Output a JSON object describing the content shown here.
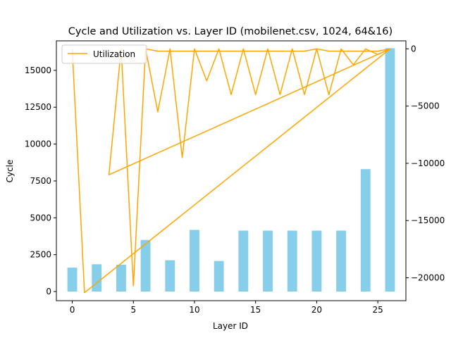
{
  "chart_data": {
    "type": "bar+line",
    "title": "Cycle and Utilization vs. Layer ID (mobilenet.csv, 1024, 64&16)",
    "xlabel": "Layer ID",
    "ylabel": "Cycle",
    "y2label": "",
    "xlim": [
      -1.3,
      27.3
    ],
    "ylim": [
      -620,
      17000
    ],
    "y2lim": [
      -22000,
      700
    ],
    "x_ticks": [
      0,
      5,
      10,
      15,
      20,
      25
    ],
    "y_ticks": [
      0,
      2500,
      5000,
      7500,
      10000,
      12500,
      15000
    ],
    "y2_ticks": [
      0,
      -5000,
      -10000,
      -15000,
      -20000
    ],
    "bar_color": "#87ceeb",
    "line_color": "#ffa500",
    "bars": {
      "x": [
        0,
        2,
        4,
        6,
        8,
        10,
        12,
        14,
        16,
        18,
        20,
        22,
        24,
        26
      ],
      "values": [
        1620,
        1850,
        1820,
        3500,
        2120,
        4180,
        2070,
        4130,
        4130,
        4130,
        4130,
        4130,
        8300,
        16500
      ]
    },
    "legend": {
      "position": "upper-left",
      "entries": [
        "Utilization"
      ]
    },
    "series": [
      {
        "name": "Utilization",
        "x": [
          0,
          1,
          26,
          25,
          24,
          23,
          22,
          21,
          20,
          19,
          18,
          17,
          16,
          15,
          14,
          13,
          12,
          11,
          10,
          9,
          8,
          7,
          6,
          5,
          4,
          3,
          26,
          25,
          24,
          23,
          22,
          21,
          20,
          19,
          18,
          17,
          16,
          15,
          14,
          13,
          12,
          11,
          10,
          9,
          8,
          7,
          6
        ],
        "y": [
          0,
          -21300,
          0,
          -500,
          0,
          -1400,
          0,
          -4000,
          0,
          -4000,
          0,
          -4000,
          0,
          -4000,
          0,
          -4000,
          0,
          -2800,
          0,
          -9500,
          0,
          -5500,
          0,
          -20700,
          0,
          -11000,
          0,
          -200,
          -200,
          -200,
          -200,
          -200,
          0,
          -200,
          -200,
          -200,
          -200,
          -200,
          -200,
          -200,
          -200,
          -200,
          -200,
          -200,
          -200,
          -200,
          0
        ]
      }
    ]
  }
}
